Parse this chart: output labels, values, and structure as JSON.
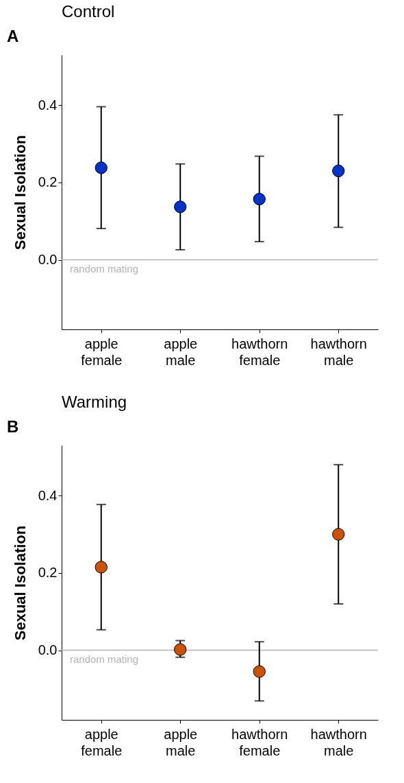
{
  "chart_data": [
    {
      "type": "scatter",
      "title": "Control",
      "ylabel": "Sexual Isolation",
      "annotations": [
        "A"
      ],
      "categories": [
        "apple female",
        "apple male",
        "hawthorn female",
        "hawthorn male"
      ],
      "series": [
        {
          "color": "#0033cc",
          "values": [
            0.238,
            0.137,
            0.157,
            0.23
          ],
          "errors": [
            [
              0.081,
              0.396
            ],
            [
              0.026,
              0.248
            ],
            [
              0.047,
              0.268
            ],
            [
              0.084,
              0.375
            ]
          ]
        }
      ],
      "ylim": [
        -0.18,
        0.53
      ],
      "yticks": [
        {
          "value": 0,
          "label": "0.0"
        },
        {
          "value": 0.2,
          "label": "0.2"
        },
        {
          "value": 0.4,
          "label": "0.4"
        }
      ],
      "ref_lines": [
        {
          "axis": "y",
          "value": 0,
          "label": "random mating",
          "color": "#b3b3b3"
        }
      ],
      "grid": false,
      "legend": false,
      "marker": "circle"
    },
    {
      "type": "scatter",
      "title": "Warming",
      "ylabel": "Sexual Isolation",
      "annotations": [
        "B"
      ],
      "categories": [
        "apple female",
        "apple male",
        "hawthorn female",
        "hawthorn male"
      ],
      "series": [
        {
          "color": "#cc5200",
          "values": [
            0.215,
            0.002,
            -0.055,
            0.3
          ],
          "errors": [
            [
              0.053,
              0.377
            ],
            [
              -0.018,
              0.025
            ],
            [
              -0.131,
              0.022
            ],
            [
              0.12,
              0.48
            ]
          ]
        }
      ],
      "ylim": [
        -0.18,
        0.53
      ],
      "yticks": [
        {
          "value": 0,
          "label": "0.0"
        },
        {
          "value": 0.2,
          "label": "0.2"
        },
        {
          "value": 0.4,
          "label": "0.4"
        }
      ],
      "ref_lines": [
        {
          "axis": "y",
          "value": 0,
          "label": "random mating",
          "color": "#b3b3b3"
        }
      ],
      "grid": false,
      "legend": false,
      "marker": "circle"
    }
  ]
}
